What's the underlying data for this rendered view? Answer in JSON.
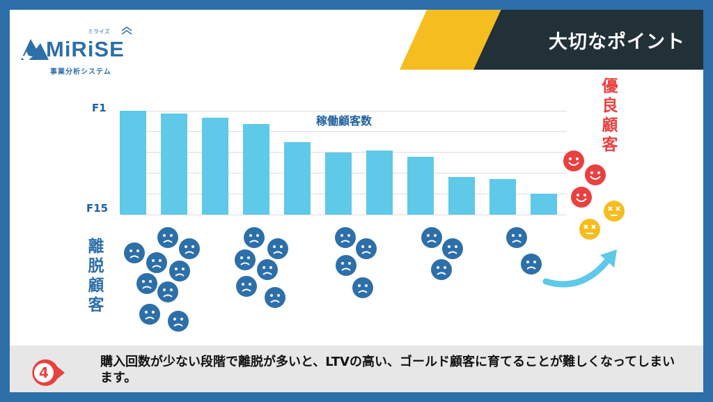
{
  "brand": {
    "name": "MiRiSE",
    "kana": "ミライズ",
    "subtitle": "事業分析システム"
  },
  "header": {
    "title": "大切なポイント"
  },
  "chart_data": {
    "type": "bar",
    "title": "稼働顧客数",
    "y_top_label": "F1",
    "y_bottom_label": "F15",
    "values": [
      100,
      97,
      93,
      87,
      70,
      60,
      62,
      56,
      36,
      34,
      20
    ]
  },
  "labels": {
    "churned": "離脱顧客",
    "excellent": "優良顧客"
  },
  "churn_groups": [
    8,
    6,
    4,
    3,
    2
  ],
  "footer": {
    "step": "4",
    "text": "購入回数が少ない段階で離脱が多いと、LTVの高い、ゴールド顧客に育てることが難しくなってしまいます。"
  },
  "colors": {
    "navy": "#2d6fa8",
    "bar": "#5ec9e8",
    "dark": "#223038",
    "yellow": "#f5bd1f",
    "red": "#e94040"
  }
}
